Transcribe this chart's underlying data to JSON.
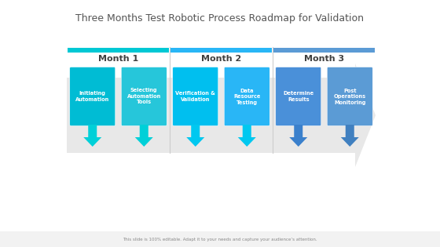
{
  "title": "Three Months Test Robotic Process Roadmap for Validation",
  "subtitle": "This slide is 100% editable. Adapt it to your needs and capture your audience’s attention.",
  "months": [
    "Month 1",
    "Month 2",
    "Month 3"
  ],
  "month_header_colors": [
    "#00C8D4",
    "#29B6F6",
    "#5B9BD5"
  ],
  "items": [
    {
      "label": "Initiating\nAutomation",
      "color": "#00BCD4",
      "arrow_color": "#00D0D8"
    },
    {
      "label": "Selecting\nAutomation\nTools",
      "color": "#26C6DA",
      "arrow_color": "#00D0D8"
    },
    {
      "label": "Verification &\nValidation",
      "color": "#00BFEF",
      "arrow_color": "#00C8F0"
    },
    {
      "label": "Data\nResource\nTesting",
      "color": "#29B6F6",
      "arrow_color": "#00C8F0"
    },
    {
      "label": "Determine\nResults",
      "color": "#4A90D9",
      "arrow_color": "#3A80CC"
    },
    {
      "label": "Post\nOperations\nMonitoring",
      "color": "#5B9BD5",
      "arrow_color": "#4080C0"
    }
  ],
  "bg_color": "#FFFFFF",
  "footer_bg": "#F2F2F2",
  "footer_text_color": "#888888",
  "arrow_bg_color": "#E8E8E8",
  "divider_color": "#CCCCCC",
  "month_text_color": "#404040"
}
